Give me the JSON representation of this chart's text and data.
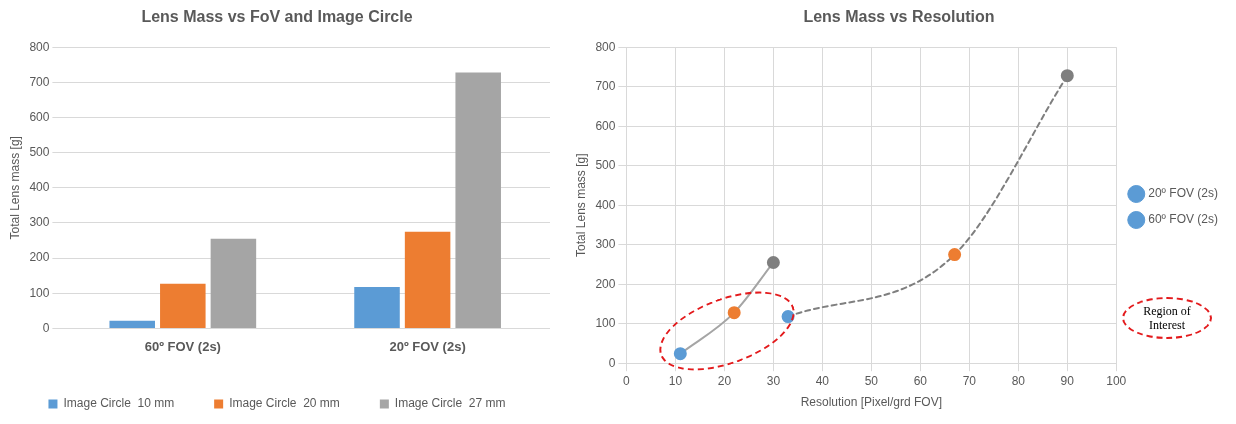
{
  "chart_data": [
    {
      "type": "bar",
      "title": "Lens Mass vs FoV and Image Circle",
      "ylabel": "Total Lens mass [g]",
      "categories": [
        "60º FOV (2s)",
        "20º FOV (2s)"
      ],
      "series": [
        {
          "name": "Image Circle  10 mm",
          "color": "#5b9bd5",
          "values": [
            22,
            118
          ]
        },
        {
          "name": "Image Circle  20 mm",
          "color": "#ed7d31",
          "values": [
            127,
            275
          ]
        },
        {
          "name": "Image Circle  27 mm",
          "color": "#a5a5a5",
          "values": [
            255,
            728
          ]
        }
      ],
      "ylim": [
        0,
        800
      ],
      "yticks": [
        0,
        100,
        200,
        300,
        400,
        500,
        600,
        700,
        800
      ],
      "grid": "y",
      "legend": "bottom"
    },
    {
      "type": "line",
      "title": "Lens Mass vs Resolution",
      "xlabel": "Resolution [Pixel/grd FOV]",
      "ylabel": "Total Lens mass [g]",
      "series": [
        {
          "name": "20º FOV (2s)",
          "color": "#7f7f7f",
          "line_style": "dashed",
          "x": [
            33,
            67,
            90
          ],
          "values": [
            118,
            275,
            728
          ],
          "colors": [
            "#5b9bd5",
            "#ed7d31",
            "#7f7f7f"
          ]
        },
        {
          "name": "60º FOV (2s)",
          "color": "#a5a5a5",
          "line_style": "solid",
          "x": [
            11,
            22,
            30
          ],
          "values": [
            24,
            128,
            255
          ],
          "colors": [
            "#5b9bd5",
            "#ed7d31",
            "#7f7f7f"
          ]
        }
      ],
      "xlim": [
        0,
        100
      ],
      "xticks": [
        0,
        10,
        20,
        30,
        40,
        50,
        60,
        70,
        80,
        90,
        100
      ],
      "ylim": [
        0,
        800
      ],
      "yticks": [
        0,
        100,
        200,
        300,
        400,
        500,
        600,
        700,
        800
      ],
      "grid": true,
      "legend": "right",
      "marker": "circle",
      "annotations": [
        "Region of Interest"
      ]
    }
  ]
}
